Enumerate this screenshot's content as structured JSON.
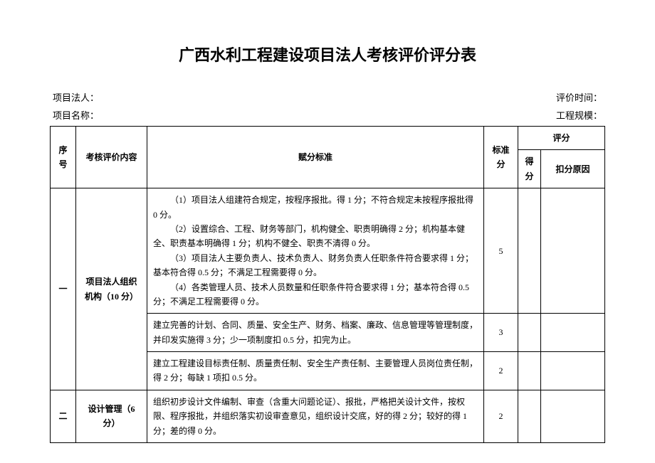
{
  "title": "广西水利工程建设项目法人考核评价评分表",
  "meta": {
    "legal_person_label": "项目法人：",
    "eval_time_label": "评价时间：",
    "project_name_label": "项目名称：",
    "project_scale_label": "工程规模："
  },
  "headers": {
    "idx": "序号",
    "category": "考核评价内容",
    "criteria": "赋分标准",
    "standard_score": "标准分",
    "score_group": "评分",
    "score": "得分",
    "deduct_reason": "扣分原因"
  },
  "rows": [
    {
      "idx": "一",
      "category": "项目法人组织机构（10 分）",
      "subrows": [
        {
          "criteria_paras": [
            "（1）项目法人组建符合规定，按程序报批。得 1 分；不符合规定未按程序报批得 0 分。",
            "（2）设置综合、工程、财务等部门，机构健全、职责明确得 2 分；机构基本健全、职责基本明确得 1 分；机构不健全、职责不清得 0 分。",
            "（3）项目法人主要负责人、技术负责人、财务负责人任职条件符合要求得 1 分；基本符合得 0.5 分；不满足工程需要得 0 分。",
            "（4）各类管理人员、技术人员数量和任职条件符合要求得 1 分；基本符合得 0.5 分；不满足工程需要得 0 分。"
          ],
          "std": "5"
        },
        {
          "criteria": "建立完善的计划、合同、质量、安全生产、财务、档案、廉政、信息管理等管理制度，并印发实施得 3 分；少一项制度扣 0.5 分，扣完为止。",
          "std": "3"
        },
        {
          "criteria": "建立工程建设目标责任制、质量责任制、安全生产责任制、主要管理人员岗位责任制，得 2 分；每缺 1 项扣 0.5 分。",
          "std": "2"
        }
      ]
    },
    {
      "idx": "二",
      "category": "设计管理（6 分）",
      "subrows": [
        {
          "criteria": "组织初步设计文件编制、审查（含重大问题论证）、报批，严格把关设计文件，按权限、程序报批，并组织落实初设审查意见，组织设计交底，好的得 2 分；较好的得 1 分；差的得 0 分。",
          "std": "2"
        }
      ]
    }
  ]
}
